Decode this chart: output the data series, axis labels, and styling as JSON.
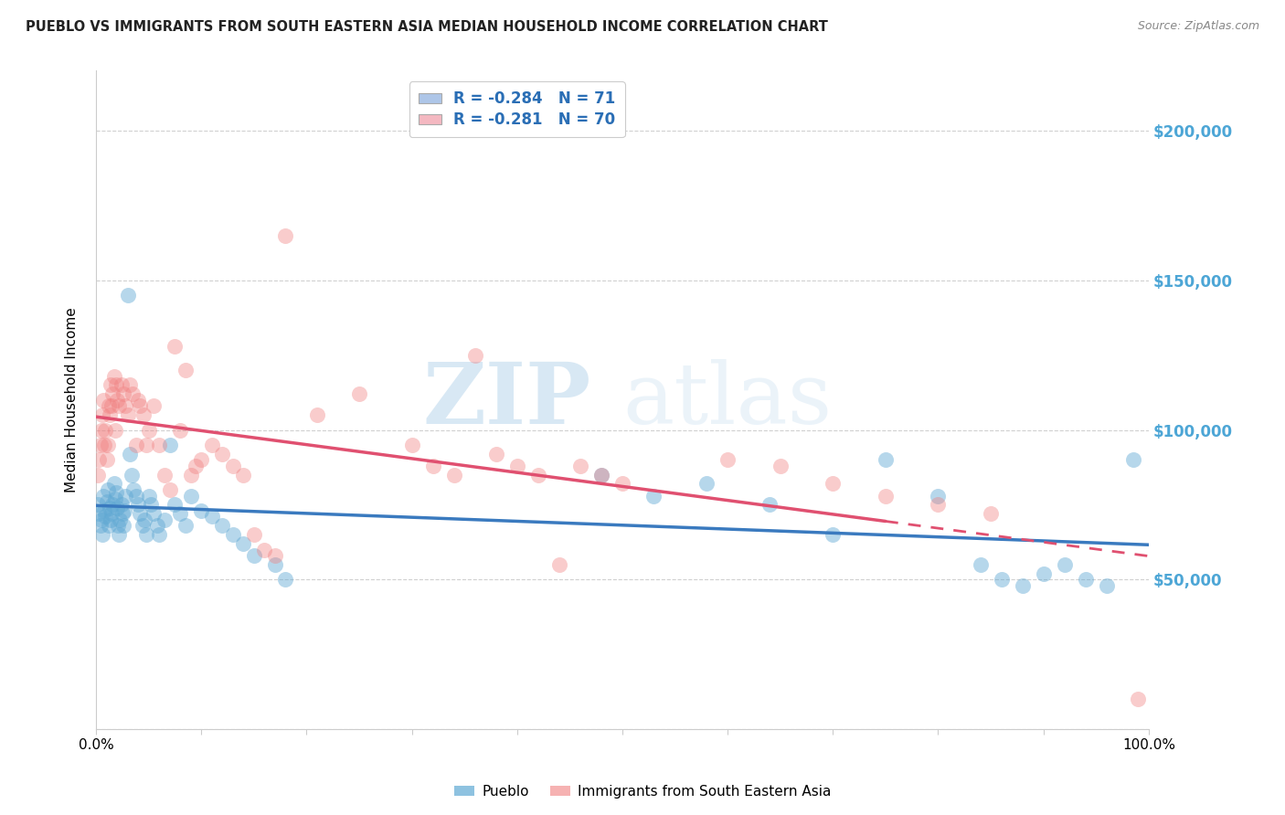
{
  "title": "PUEBLO VS IMMIGRANTS FROM SOUTH EASTERN ASIA MEDIAN HOUSEHOLD INCOME CORRELATION CHART",
  "source": "Source: ZipAtlas.com",
  "ylabel": "Median Household Income",
  "xlim": [
    0.0,
    1.0
  ],
  "ylim": [
    0,
    220000
  ],
  "yticks": [
    0,
    50000,
    100000,
    150000,
    200000
  ],
  "ytick_labels": [
    "",
    "$50,000",
    "$100,000",
    "$150,000",
    "$200,000"
  ],
  "xtick_positions": [
    0.0,
    0.1,
    0.2,
    0.3,
    0.4,
    0.5,
    0.6,
    0.7,
    0.8,
    0.9,
    1.0
  ],
  "xtick_labels": [
    "0.0%",
    "",
    "",
    "",
    "",
    "",
    "",
    "",
    "",
    "",
    "100.0%"
  ],
  "legend_entries": [
    {
      "label": "R = -0.284   N = 71",
      "color": "#aec6e8"
    },
    {
      "label": "R = -0.281   N = 70",
      "color": "#f4b8c1"
    }
  ],
  "watermark_zip": "ZIP",
  "watermark_atlas": "atlas",
  "blue_color": "#5fa8d3",
  "pink_color": "#f08080",
  "line_blue": "#3a7abf",
  "line_pink": "#e05070",
  "grid_color": "#d0d0d0",
  "background_color": "#ffffff",
  "legend_label_blue": "Pueblo",
  "legend_label_pink": "Immigrants from South Eastern Asia",
  "blue_points_x": [
    0.002,
    0.003,
    0.004,
    0.005,
    0.006,
    0.007,
    0.008,
    0.009,
    0.01,
    0.011,
    0.012,
    0.013,
    0.014,
    0.015,
    0.016,
    0.017,
    0.018,
    0.019,
    0.02,
    0.021,
    0.022,
    0.023,
    0.024,
    0.025,
    0.026,
    0.027,
    0.028,
    0.03,
    0.032,
    0.034,
    0.036,
    0.038,
    0.04,
    0.042,
    0.044,
    0.046,
    0.048,
    0.05,
    0.052,
    0.055,
    0.058,
    0.06,
    0.065,
    0.07,
    0.075,
    0.08,
    0.085,
    0.09,
    0.1,
    0.11,
    0.12,
    0.13,
    0.14,
    0.15,
    0.17,
    0.18,
    0.48,
    0.53,
    0.58,
    0.64,
    0.7,
    0.75,
    0.8,
    0.84,
    0.86,
    0.88,
    0.9,
    0.92,
    0.94,
    0.96,
    0.985
  ],
  "blue_points_y": [
    75000,
    72000,
    68000,
    70000,
    65000,
    78000,
    73000,
    71000,
    76000,
    80000,
    68000,
    74000,
    70000,
    72000,
    75000,
    82000,
    77000,
    79000,
    74000,
    68000,
    65000,
    70000,
    75000,
    72000,
    68000,
    73000,
    78000,
    145000,
    92000,
    85000,
    80000,
    78000,
    75000,
    72000,
    68000,
    70000,
    65000,
    78000,
    75000,
    72000,
    68000,
    65000,
    70000,
    95000,
    75000,
    72000,
    68000,
    78000,
    73000,
    71000,
    68000,
    65000,
    62000,
    58000,
    55000,
    50000,
    85000,
    78000,
    82000,
    75000,
    65000,
    90000,
    78000,
    55000,
    50000,
    48000,
    52000,
    55000,
    50000,
    48000,
    90000
  ],
  "pink_points_x": [
    0.002,
    0.003,
    0.004,
    0.005,
    0.006,
    0.007,
    0.008,
    0.009,
    0.01,
    0.011,
    0.012,
    0.013,
    0.014,
    0.015,
    0.016,
    0.017,
    0.018,
    0.019,
    0.02,
    0.022,
    0.024,
    0.026,
    0.028,
    0.03,
    0.032,
    0.035,
    0.038,
    0.04,
    0.042,
    0.045,
    0.048,
    0.05,
    0.055,
    0.06,
    0.065,
    0.07,
    0.075,
    0.08,
    0.085,
    0.09,
    0.095,
    0.1,
    0.11,
    0.12,
    0.13,
    0.14,
    0.15,
    0.16,
    0.17,
    0.18,
    0.21,
    0.25,
    0.3,
    0.32,
    0.34,
    0.36,
    0.38,
    0.4,
    0.42,
    0.44,
    0.46,
    0.48,
    0.5,
    0.6,
    0.65,
    0.7,
    0.75,
    0.8,
    0.85,
    0.99
  ],
  "pink_points_y": [
    85000,
    90000,
    95000,
    100000,
    105000,
    110000,
    95000,
    100000,
    90000,
    95000,
    108000,
    105000,
    115000,
    108000,
    112000,
    118000,
    100000,
    115000,
    110000,
    108000,
    115000,
    112000,
    108000,
    105000,
    115000,
    112000,
    95000,
    110000,
    108000,
    105000,
    95000,
    100000,
    108000,
    95000,
    85000,
    80000,
    128000,
    100000,
    120000,
    85000,
    88000,
    90000,
    95000,
    92000,
    88000,
    85000,
    65000,
    60000,
    58000,
    165000,
    105000,
    112000,
    95000,
    88000,
    85000,
    125000,
    92000,
    88000,
    85000,
    55000,
    88000,
    85000,
    82000,
    90000,
    88000,
    82000,
    78000,
    75000,
    72000,
    10000
  ]
}
